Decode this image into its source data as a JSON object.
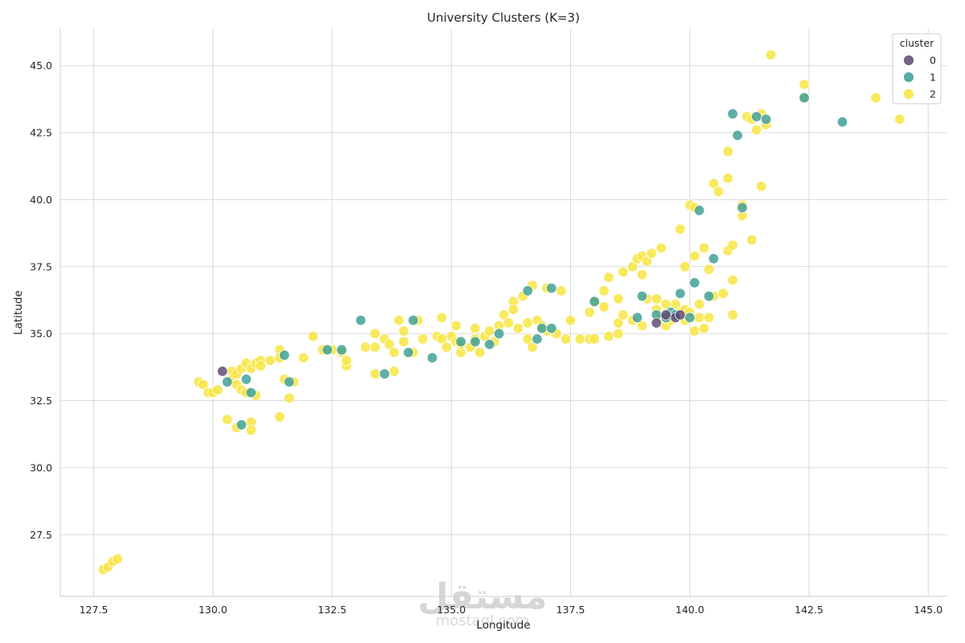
{
  "chart_data": {
    "type": "scatter",
    "title": "University Clusters (K=3)",
    "xlabel": "Longitude",
    "ylabel": "Latitude",
    "xlim": [
      126.8,
      145.4
    ],
    "ylim": [
      25.2,
      46.4
    ],
    "xticks": [
      "127.5",
      "130.0",
      "132.5",
      "135.0",
      "137.5",
      "140.0",
      "142.5",
      "145.0"
    ],
    "xtick_values": [
      127.5,
      130.0,
      132.5,
      135.0,
      137.5,
      140.0,
      142.5,
      145.0
    ],
    "yticks": [
      "27.5",
      "30.0",
      "32.5",
      "35.0",
      "37.5",
      "40.0",
      "42.5",
      "45.0"
    ],
    "ytick_values": [
      27.5,
      30.0,
      32.5,
      35.0,
      37.5,
      40.0,
      42.5,
      45.0
    ],
    "grid": true,
    "legend": {
      "title": "cluster",
      "position": "top-right",
      "labels": [
        "0",
        "1",
        "2"
      ]
    },
    "colors": {
      "0": "#5b4870",
      "1": "#3a9e94",
      "2": "#f8e43a"
    },
    "series": [
      {
        "name": "0",
        "points": [
          [
            130.2,
            33.6
          ],
          [
            139.3,
            35.4
          ],
          [
            139.7,
            35.6
          ],
          [
            139.5,
            35.7
          ],
          [
            139.8,
            35.7
          ]
        ]
      },
      {
        "name": "1",
        "points": [
          [
            130.3,
            33.2
          ],
          [
            130.6,
            31.6
          ],
          [
            130.7,
            33.3
          ],
          [
            130.8,
            32.8
          ],
          [
            131.5,
            34.2
          ],
          [
            131.6,
            33.2
          ],
          [
            132.4,
            34.4
          ],
          [
            132.7,
            34.4
          ],
          [
            133.1,
            35.5
          ],
          [
            133.6,
            33.5
          ],
          [
            134.2,
            35.5
          ],
          [
            134.1,
            34.3
          ],
          [
            134.6,
            34.1
          ],
          [
            135.2,
            34.7
          ],
          [
            135.5,
            34.7
          ],
          [
            135.8,
            34.6
          ],
          [
            136.0,
            35.0
          ],
          [
            136.6,
            36.6
          ],
          [
            136.8,
            34.8
          ],
          [
            136.9,
            35.2
          ],
          [
            137.1,
            35.2
          ],
          [
            137.1,
            36.7
          ],
          [
            138.0,
            36.2
          ],
          [
            138.9,
            35.6
          ],
          [
            139.0,
            36.4
          ],
          [
            139.3,
            35.7
          ],
          [
            139.5,
            35.6
          ],
          [
            139.6,
            35.8
          ],
          [
            139.7,
            35.7
          ],
          [
            139.8,
            36.5
          ],
          [
            140.0,
            35.6
          ],
          [
            140.1,
            36.9
          ],
          [
            140.2,
            39.6
          ],
          [
            140.4,
            36.4
          ],
          [
            140.5,
            37.8
          ],
          [
            140.9,
            43.2
          ],
          [
            141.0,
            42.4
          ],
          [
            141.4,
            43.1
          ],
          [
            141.1,
            39.7
          ],
          [
            142.4,
            43.8
          ],
          [
            143.2,
            42.9
          ],
          [
            141.6,
            43.0
          ]
        ]
      },
      {
        "name": "2",
        "points": [
          [
            127.7,
            26.2
          ],
          [
            127.8,
            26.3
          ],
          [
            127.9,
            26.5
          ],
          [
            128.0,
            26.6
          ],
          [
            129.7,
            33.2
          ],
          [
            129.8,
            33.1
          ],
          [
            129.9,
            32.8
          ],
          [
            130.0,
            32.8
          ],
          [
            130.1,
            32.9
          ],
          [
            130.3,
            31.8
          ],
          [
            130.4,
            33.6
          ],
          [
            130.4,
            33.3
          ],
          [
            130.5,
            33.5
          ],
          [
            130.5,
            33.1
          ],
          [
            130.5,
            31.5
          ],
          [
            130.6,
            33.7
          ],
          [
            130.6,
            32.9
          ],
          [
            130.7,
            33.9
          ],
          [
            130.7,
            32.8
          ],
          [
            130.8,
            33.7
          ],
          [
            130.8,
            31.7
          ],
          [
            130.8,
            31.4
          ],
          [
            130.9,
            33.9
          ],
          [
            130.9,
            32.7
          ],
          [
            131.0,
            34.0
          ],
          [
            131.0,
            33.8
          ],
          [
            131.2,
            34.0
          ],
          [
            131.4,
            34.4
          ],
          [
            131.4,
            34.1
          ],
          [
            131.4,
            31.9
          ],
          [
            131.5,
            33.3
          ],
          [
            131.6,
            32.6
          ],
          [
            131.7,
            33.2
          ],
          [
            131.9,
            34.1
          ],
          [
            132.1,
            34.9
          ],
          [
            132.3,
            34.4
          ],
          [
            132.5,
            34.4
          ],
          [
            132.7,
            34.3
          ],
          [
            132.8,
            33.8
          ],
          [
            132.8,
            34.0
          ],
          [
            133.2,
            34.5
          ],
          [
            133.4,
            34.5
          ],
          [
            133.4,
            35.0
          ],
          [
            133.4,
            33.5
          ],
          [
            133.6,
            34.8
          ],
          [
            133.7,
            34.6
          ],
          [
            133.8,
            33.6
          ],
          [
            133.9,
            35.5
          ],
          [
            133.8,
            34.3
          ],
          [
            134.0,
            34.7
          ],
          [
            134.0,
            35.1
          ],
          [
            134.2,
            34.3
          ],
          [
            134.3,
            35.5
          ],
          [
            134.4,
            34.8
          ],
          [
            134.7,
            34.9
          ],
          [
            134.8,
            34.8
          ],
          [
            134.8,
            35.6
          ],
          [
            134.9,
            34.5
          ],
          [
            135.0,
            34.9
          ],
          [
            135.1,
            34.7
          ],
          [
            135.1,
            35.3
          ],
          [
            135.2,
            34.3
          ],
          [
            135.2,
            34.6
          ],
          [
            135.4,
            34.5
          ],
          [
            135.5,
            35.2
          ],
          [
            135.5,
            34.8
          ],
          [
            135.6,
            34.3
          ],
          [
            135.7,
            34.9
          ],
          [
            135.8,
            35.1
          ],
          [
            135.9,
            34.7
          ],
          [
            136.0,
            35.3
          ],
          [
            136.1,
            35.7
          ],
          [
            136.2,
            35.4
          ],
          [
            136.3,
            36.2
          ],
          [
            136.3,
            35.9
          ],
          [
            136.4,
            35.2
          ],
          [
            136.5,
            36.4
          ],
          [
            136.6,
            34.8
          ],
          [
            136.6,
            35.4
          ],
          [
            136.7,
            36.8
          ],
          [
            136.7,
            34.5
          ],
          [
            136.8,
            35.5
          ],
          [
            136.9,
            35.3
          ],
          [
            137.0,
            36.7
          ],
          [
            137.0,
            35.1
          ],
          [
            137.2,
            35.0
          ],
          [
            137.3,
            36.6
          ],
          [
            137.4,
            34.8
          ],
          [
            137.5,
            35.5
          ],
          [
            137.7,
            34.8
          ],
          [
            137.9,
            34.8
          ],
          [
            138.0,
            34.8
          ],
          [
            137.9,
            35.8
          ],
          [
            138.0,
            36.2
          ],
          [
            138.2,
            36.0
          ],
          [
            138.2,
            36.6
          ],
          [
            138.3,
            37.1
          ],
          [
            138.3,
            34.9
          ],
          [
            138.5,
            35.4
          ],
          [
            138.5,
            36.3
          ],
          [
            138.5,
            35.0
          ],
          [
            138.6,
            37.3
          ],
          [
            138.6,
            35.7
          ],
          [
            138.8,
            35.5
          ],
          [
            138.8,
            37.5
          ],
          [
            138.9,
            37.8
          ],
          [
            139.0,
            37.2
          ],
          [
            139.0,
            37.9
          ],
          [
            139.0,
            35.3
          ],
          [
            139.1,
            37.7
          ],
          [
            139.1,
            36.3
          ],
          [
            139.2,
            38.0
          ],
          [
            139.3,
            36.3
          ],
          [
            139.3,
            35.9
          ],
          [
            139.4,
            38.2
          ],
          [
            139.4,
            35.6
          ],
          [
            139.5,
            36.1
          ],
          [
            139.5,
            35.3
          ],
          [
            139.6,
            35.5
          ],
          [
            139.7,
            36.1
          ],
          [
            139.8,
            35.8
          ],
          [
            139.8,
            38.9
          ],
          [
            139.9,
            35.9
          ],
          [
            139.9,
            37.5
          ],
          [
            139.9,
            35.5
          ],
          [
            140.0,
            39.8
          ],
          [
            140.0,
            35.8
          ],
          [
            140.1,
            35.1
          ],
          [
            140.1,
            37.9
          ],
          [
            140.1,
            39.7
          ],
          [
            140.2,
            36.1
          ],
          [
            140.2,
            35.6
          ],
          [
            140.3,
            35.2
          ],
          [
            140.3,
            38.2
          ],
          [
            140.4,
            37.4
          ],
          [
            140.4,
            35.6
          ],
          [
            140.5,
            40.6
          ],
          [
            140.5,
            36.4
          ],
          [
            140.6,
            40.3
          ],
          [
            140.7,
            36.5
          ],
          [
            140.8,
            41.8
          ],
          [
            140.8,
            40.8
          ],
          [
            140.8,
            38.1
          ],
          [
            140.9,
            38.3
          ],
          [
            140.9,
            35.7
          ],
          [
            140.9,
            37.0
          ],
          [
            141.1,
            39.4
          ],
          [
            141.1,
            39.8
          ],
          [
            141.2,
            43.1
          ],
          [
            141.3,
            38.5
          ],
          [
            141.3,
            43.0
          ],
          [
            141.4,
            42.6
          ],
          [
            141.5,
            43.2
          ],
          [
            141.5,
            40.5
          ],
          [
            141.6,
            42.8
          ],
          [
            141.7,
            45.4
          ],
          [
            142.4,
            44.3
          ],
          [
            142.4,
            43.8
          ],
          [
            143.9,
            43.8
          ],
          [
            144.4,
            43.0
          ]
        ]
      }
    ]
  },
  "watermark": {
    "text": "مستقل",
    "subtext": "mostaql.com"
  }
}
